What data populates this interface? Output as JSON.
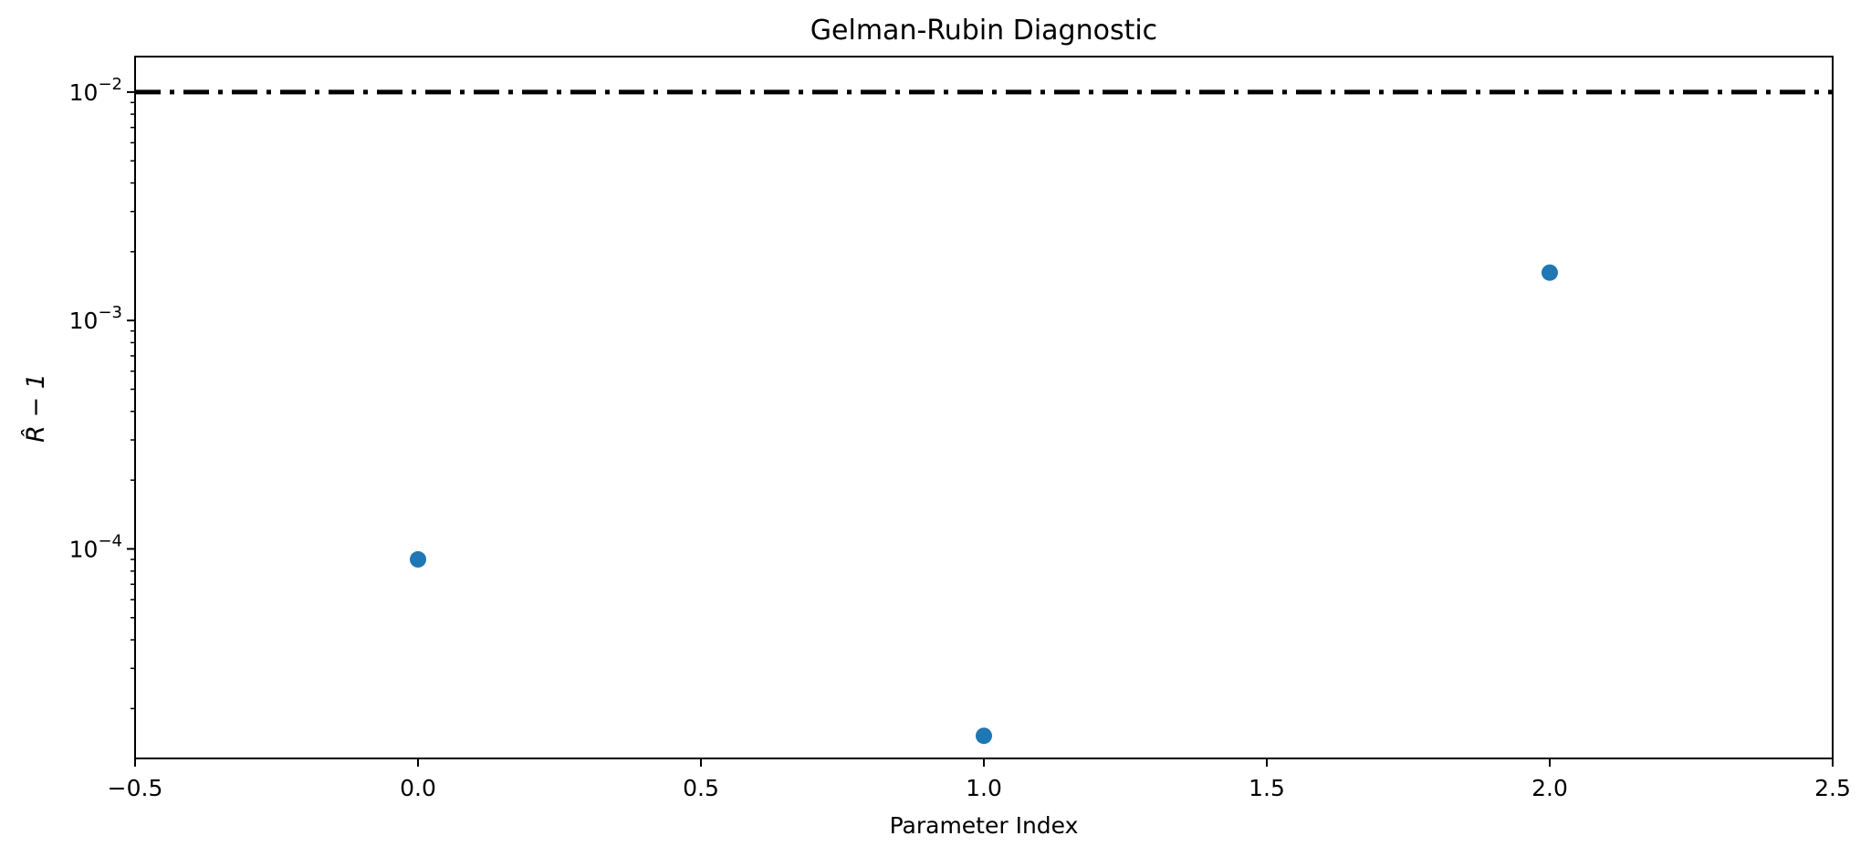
{
  "chart_data": {
    "type": "scatter",
    "title": "Gelman-Rubin Diagnostic",
    "xlabel": "Parameter Index",
    "ylabel": "R̂ − 1",
    "xlim": [
      -0.5,
      2.5
    ],
    "ylim": [
      1.21e-05,
      0.0143
    ],
    "yscale": "log",
    "grid": false,
    "xticks": [
      -0.5,
      0.0,
      0.5,
      1.0,
      1.5,
      2.0,
      2.5
    ],
    "xtick_labels": [
      "−0.5",
      "0.0",
      "0.5",
      "1.0",
      "1.5",
      "2.0",
      "2.5"
    ],
    "yticks": [
      {
        "value": 0.0001,
        "base": "10",
        "exp": "−4"
      },
      {
        "value": 0.001,
        "base": "10",
        "exp": "−3"
      },
      {
        "value": 0.01,
        "base": "10",
        "exp": "−2"
      }
    ],
    "points": [
      {
        "x": 0,
        "y": 9e-05
      },
      {
        "x": 1,
        "y": 1.52e-05
      },
      {
        "x": 2,
        "y": 0.00162
      }
    ],
    "threshold": {
      "y": 0.01,
      "style": "dashdot",
      "color": "#000000"
    },
    "marker_color": "#1f77b4"
  }
}
